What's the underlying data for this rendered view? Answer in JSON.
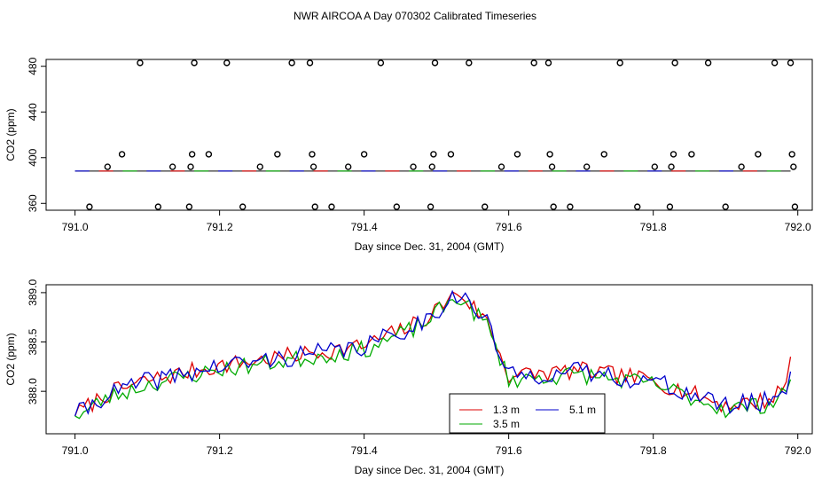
{
  "title": "NWR AIRCOA A  Day 070302  Calibrated Timeseries",
  "colors": {
    "r13": "#dd0000",
    "r35": "#00aa00",
    "r51": "#0000cc",
    "axis": "#000000"
  },
  "chart_data": [
    {
      "type": "scatter",
      "name": "top",
      "xlabel": "Day since Dec. 31, 2004 (GMT)",
      "ylabel": "CO2 (ppm)",
      "xlim": [
        790.96,
        792.02
      ],
      "ylim": [
        354,
        486
      ],
      "xticks": [
        791.0,
        791.2,
        791.4,
        791.6,
        791.8,
        792.0
      ],
      "xtick_labels": [
        "791.0",
        "791.2",
        "791.4",
        "791.6",
        "791.8",
        "792.0"
      ],
      "yticks": [
        360,
        400,
        440,
        480
      ],
      "ytick_labels": [
        "360",
        "400",
        "440",
        "480"
      ],
      "baseline": {
        "value": 388.3,
        "x": [
          791.0,
          791.99
        ]
      },
      "points_x": [
        791.02,
        791.045,
        791.065,
        791.09,
        791.115,
        791.135,
        791.158,
        791.16,
        791.162,
        791.165,
        791.185,
        791.21,
        791.232,
        791.256,
        791.28,
        791.3,
        791.325,
        791.328,
        791.33,
        791.332,
        791.355,
        791.378,
        791.4,
        791.423,
        791.445,
        791.468,
        791.492,
        791.494,
        791.496,
        791.498,
        791.52,
        791.545,
        791.567,
        791.59,
        791.612,
        791.635,
        791.655,
        791.657,
        791.66,
        791.662,
        791.685,
        791.708,
        791.732,
        791.754,
        791.778,
        791.802,
        791.823,
        791.825,
        791.828,
        791.83,
        791.853,
        791.876,
        791.9,
        791.922,
        791.945,
        791.968,
        791.99,
        791.992,
        791.994,
        791.996
      ],
      "points_y": [
        357,
        392,
        403,
        483,
        357,
        392,
        357,
        392,
        403,
        483,
        403,
        483,
        357,
        392,
        403,
        483,
        483,
        403,
        392,
        357,
        357,
        392,
        403,
        483,
        357,
        392,
        357,
        392,
        403,
        483,
        403,
        483,
        357,
        392,
        403,
        483,
        483,
        403,
        392,
        357,
        357,
        392,
        403,
        483,
        357,
        392,
        357,
        392,
        403,
        483,
        403,
        483,
        357,
        392,
        403,
        483,
        483,
        403,
        392,
        357
      ]
    },
    {
      "type": "line",
      "name": "bottom",
      "xlabel": "Day since Dec. 31, 2004 (GMT)",
      "ylabel": "CO2 (ppm)",
      "xlim": [
        790.96,
        792.02
      ],
      "ylim": [
        387.57,
        389.08
      ],
      "xticks": [
        791.0,
        791.2,
        791.4,
        791.6,
        791.8,
        792.0
      ],
      "xtick_labels": [
        "791.0",
        "791.2",
        "791.4",
        "791.6",
        "791.8",
        "792.0"
      ],
      "yticks": [
        388.0,
        388.5,
        389.0
      ],
      "ytick_labels": [
        "388.0",
        "388.5",
        "389.0"
      ],
      "legend_position": "bottom-center",
      "x_start": 791.0,
      "x_step": 0.006,
      "n_points": 166,
      "trend": [
        [
          791.0,
          387.75
        ],
        [
          791.04,
          387.95
        ],
        [
          791.1,
          388.1
        ],
        [
          791.2,
          388.25
        ],
        [
          791.3,
          388.35
        ],
        [
          791.4,
          388.45
        ],
        [
          791.48,
          388.7
        ],
        [
          791.53,
          389.0
        ],
        [
          791.57,
          388.7
        ],
        [
          791.6,
          388.15
        ],
        [
          791.7,
          388.2
        ],
        [
          791.8,
          388.1
        ],
        [
          791.9,
          387.85
        ],
        [
          791.96,
          387.9
        ],
        [
          791.99,
          388.1
        ]
      ],
      "series": [
        {
          "name": "1.3 m",
          "color": "#dd0000",
          "seed": 7,
          "amp": 0.09,
          "offset": 0.01,
          "end_value": 388.35
        },
        {
          "name": "3.5 m",
          "color": "#00aa00",
          "seed": 23,
          "amp": 0.09,
          "offset": -0.03,
          "end_value": 388.12
        },
        {
          "name": "5.1 m",
          "color": "#0000cc",
          "seed": 41,
          "amp": 0.1,
          "offset": 0.0,
          "end_value": 388.2
        }
      ]
    }
  ]
}
